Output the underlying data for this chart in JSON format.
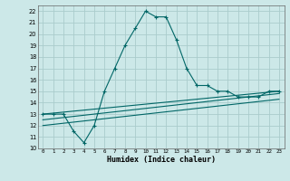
{
  "xlabel": "Humidex (Indice chaleur)",
  "xlim": [
    -0.5,
    23.5
  ],
  "ylim": [
    10,
    22.5
  ],
  "yticks": [
    10,
    11,
    12,
    13,
    14,
    15,
    16,
    17,
    18,
    19,
    20,
    21,
    22
  ],
  "xticks": [
    0,
    1,
    2,
    3,
    4,
    5,
    6,
    7,
    8,
    9,
    10,
    11,
    12,
    13,
    14,
    15,
    16,
    17,
    18,
    19,
    20,
    21,
    22,
    23
  ],
  "bg_color": "#cce8e8",
  "grid_color": "#aacccc",
  "line_color": "#006666",
  "main_x": [
    0,
    1,
    2,
    3,
    4,
    5,
    6,
    7,
    8,
    9,
    10,
    11,
    12,
    13,
    14,
    15,
    16,
    17,
    18,
    19,
    20,
    21,
    22,
    23
  ],
  "main_y": [
    13,
    13,
    13,
    11.5,
    10.5,
    12,
    15,
    17,
    19,
    20.5,
    22,
    21.5,
    21.5,
    19.5,
    17,
    15.5,
    15.5,
    15,
    15,
    14.5,
    14.5,
    14.5,
    15,
    15
  ],
  "line2_x": [
    0,
    23
  ],
  "line2_y": [
    13.0,
    15.0
  ],
  "line3_x": [
    0,
    23
  ],
  "line3_y": [
    12.5,
    14.8
  ],
  "line4_x": [
    0,
    23
  ],
  "line4_y": [
    12.0,
    14.3
  ]
}
